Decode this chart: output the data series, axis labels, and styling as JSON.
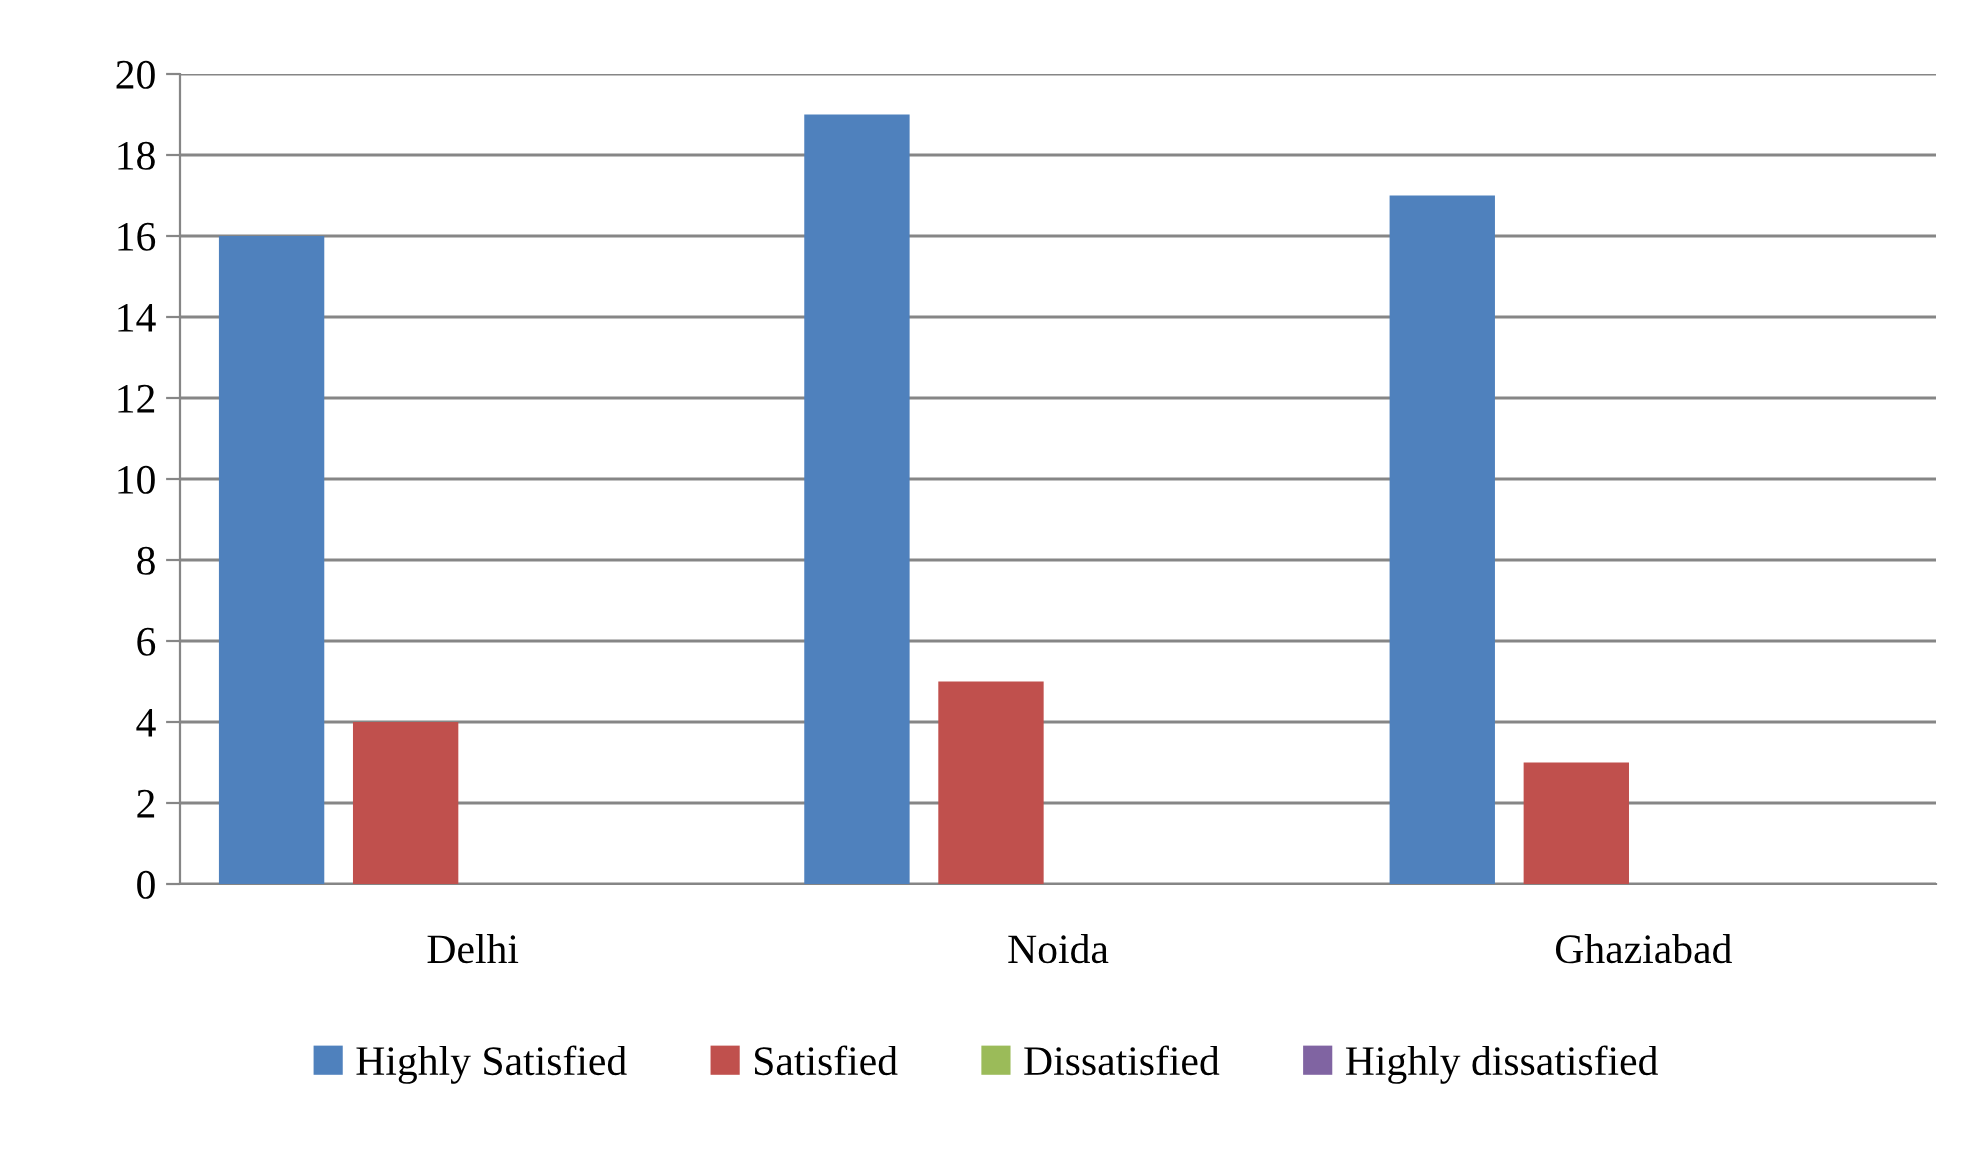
{
  "chart_data": {
    "type": "bar",
    "categories": [
      "Delhi",
      "Noida",
      "Ghaziabad"
    ],
    "series": [
      {
        "name": "Highly Satisfied",
        "color": "#4f81bd",
        "values": [
          16,
          19,
          17
        ]
      },
      {
        "name": "Satisfied",
        "color": "#c0504d",
        "values": [
          4,
          5,
          3
        ]
      },
      {
        "name": "Dissatisfied",
        "color": "#9bbb59",
        "values": [
          0,
          0,
          0
        ]
      },
      {
        "name": "Highly dissatisfied",
        "color": "#8064a2",
        "values": [
          0,
          0,
          0
        ]
      }
    ],
    "ylim": [
      0,
      20
    ],
    "yticks": [
      0,
      2,
      4,
      6,
      8,
      10,
      12,
      14,
      16,
      18,
      20
    ],
    "grid": "y",
    "legend": "bottom"
  }
}
